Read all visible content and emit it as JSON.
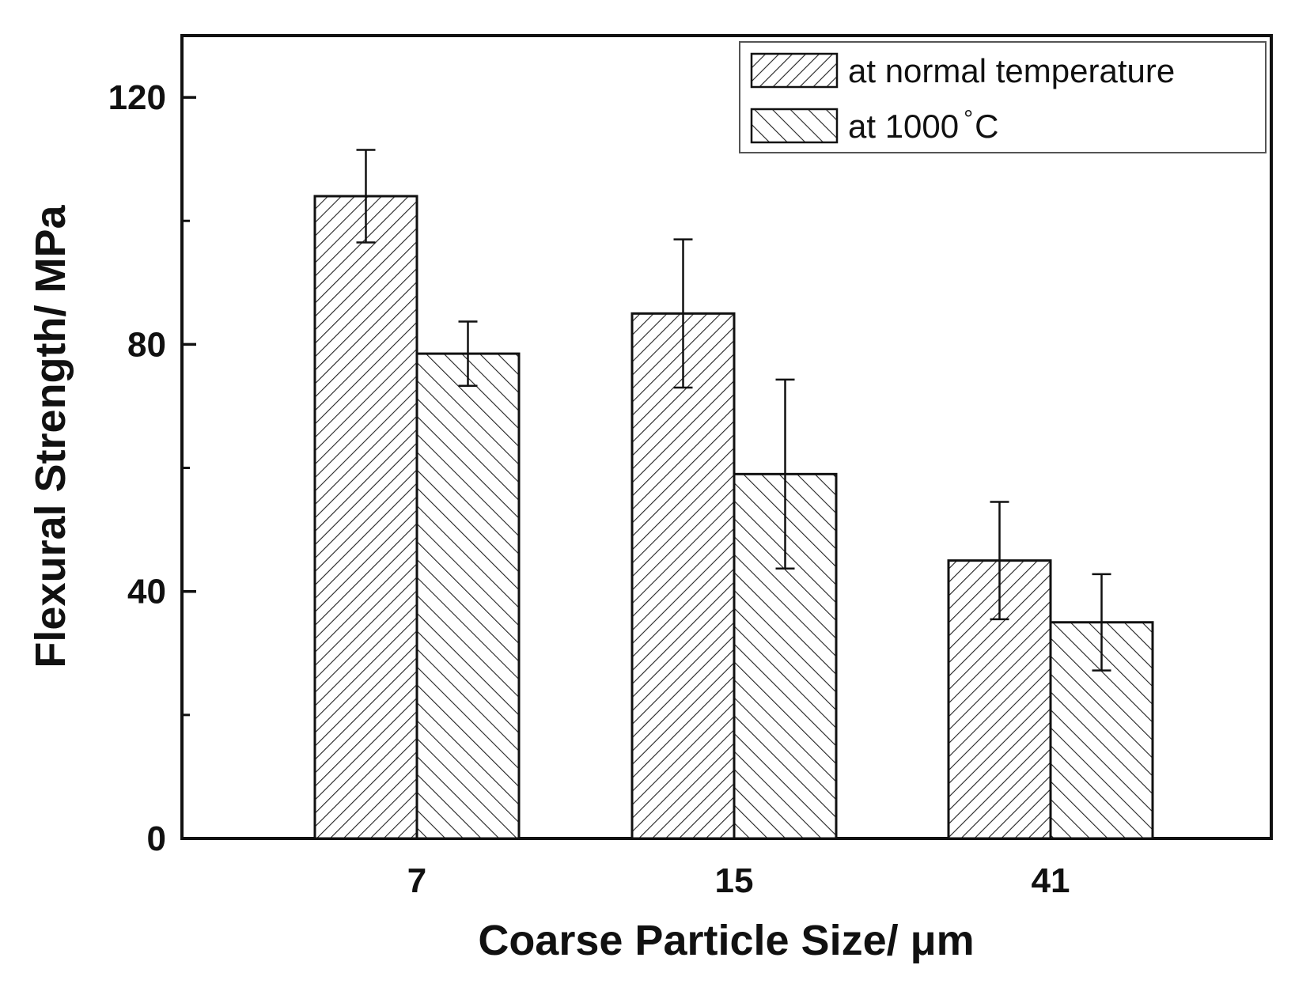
{
  "chart_data": {
    "type": "bar",
    "title": "",
    "xlabel": "Coarse Particle Size/ μm",
    "ylabel": "Flexural Strength/ MPa",
    "categories": [
      "7",
      "15",
      "41"
    ],
    "ylim": [
      0,
      130
    ],
    "yticks": [
      0,
      40,
      80,
      120
    ],
    "y_minor_ticks": [
      20,
      60,
      100
    ],
    "grid": false,
    "legend_position": "top-right",
    "series": [
      {
        "name": "at normal temperature",
        "hatch": "forward-diagonal",
        "values": [
          104,
          85,
          45
        ],
        "error": [
          7.5,
          12,
          9.5
        ]
      },
      {
        "name": "at 1000°C",
        "hatch": "backward-diagonal",
        "values": [
          78.5,
          59,
          35
        ],
        "error": [
          5.2,
          15.3,
          7.8
        ]
      }
    ],
    "legend_labels": {
      "normal": "at normal temperature",
      "hot_prefix": "at 1000",
      "hot_degree": "°",
      "hot_suffix": "C"
    }
  },
  "colors": {
    "axis": "#111111",
    "bar_fill": "#ffffff",
    "hatch": "#222222",
    "legend_border": "#555555"
  }
}
